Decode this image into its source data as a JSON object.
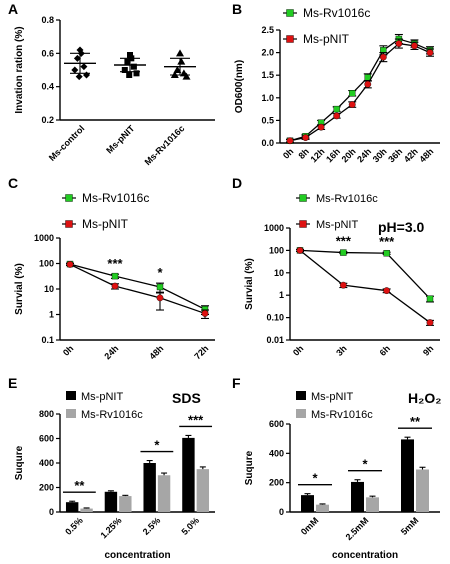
{
  "colors": {
    "green": "#22cc22",
    "red": "#dd1111",
    "black": "#000000",
    "gray": "#a6a6a6"
  },
  "chart_data": [
    {
      "panel": "A",
      "type": "scatter",
      "categories": [
        "Ms-control",
        "Ms-pNIT",
        "Ms-Rv1016c"
      ],
      "ylabel": "Invation ration (%)",
      "ylim": [
        0.2,
        0.8
      ],
      "yticks": [
        "0.2",
        "0.4",
        "0.6",
        "0.8"
      ],
      "points": [
        [
          0.62,
          0.6,
          0.57,
          0.52,
          0.5,
          0.47,
          0.46
        ],
        [
          0.59,
          0.57,
          0.55,
          0.52,
          0.5,
          0.48,
          0.47
        ],
        [
          0.6,
          0.55,
          0.5,
          0.48,
          0.47,
          0.46
        ]
      ],
      "means": [
        0.54,
        0.53,
        0.52
      ],
      "sd": [
        0.06,
        0.04,
        0.05
      ]
    },
    {
      "panel": "B",
      "type": "line",
      "x": [
        "0h",
        "8h",
        "12h",
        "16h",
        "20h",
        "24h",
        "30h",
        "36h",
        "42h",
        "48h"
      ],
      "ylabel": "OD600(nm)",
      "ylim": [
        0,
        2.5
      ],
      "yticks": [
        "0.0",
        "0.5",
        "1.0",
        "1.5",
        "2.0",
        "2.5"
      ],
      "series": [
        {
          "name": "Ms-Rv1016c",
          "color": "green",
          "values": [
            0.05,
            0.15,
            0.45,
            0.75,
            1.1,
            1.45,
            2.05,
            2.3,
            2.2,
            2.05
          ],
          "err": [
            0.03,
            0.04,
            0.05,
            0.05,
            0.06,
            0.08,
            0.1,
            0.1,
            0.08,
            0.08
          ]
        },
        {
          "name": "Ms-pNIT",
          "color": "red",
          "values": [
            0.05,
            0.12,
            0.35,
            0.6,
            0.85,
            1.3,
            1.9,
            2.2,
            2.15,
            2.0
          ],
          "err": [
            0.03,
            0.04,
            0.05,
            0.05,
            0.06,
            0.08,
            0.1,
            0.1,
            0.08,
            0.08
          ]
        }
      ]
    },
    {
      "panel": "C",
      "type": "line",
      "x": [
        "0h",
        "24h",
        "48h",
        "72h"
      ],
      "ylabel": "Survial (%)",
      "ylim": [
        0.1,
        1000
      ],
      "yscale": "log",
      "yticks": [
        "0.1",
        "1",
        "10",
        "100",
        "1000"
      ],
      "series": [
        {
          "name": "Ms-Rv1016c",
          "color": "green",
          "values": [
            95,
            32,
            12,
            1.6
          ],
          "err": [
            8,
            6,
            5,
            0.6
          ]
        },
        {
          "name": "Ms-pNIT",
          "color": "red",
          "values": [
            92,
            13,
            4.5,
            1.1
          ],
          "err": [
            8,
            3,
            3,
            0.4
          ]
        }
      ],
      "annotations": [
        {
          "x": "24h",
          "text": "***"
        },
        {
          "x": "48h",
          "text": "*"
        }
      ]
    },
    {
      "panel": "D",
      "type": "line",
      "x": [
        "0h",
        "3h",
        "6h",
        "9h"
      ],
      "ylabel": "Survial (%)",
      "ylim": [
        0.01,
        1000
      ],
      "yscale": "log",
      "yticks": [
        "0.01",
        "0.10",
        "1",
        "10",
        "100",
        "1000"
      ],
      "note": "pH=3.0",
      "series": [
        {
          "name": "Ms-Rv1016c",
          "color": "green",
          "values": [
            100,
            80,
            75,
            0.7
          ],
          "err": [
            10,
            8,
            8,
            0.2
          ]
        },
        {
          "name": "Ms-pNIT",
          "color": "red",
          "values": [
            100,
            2.8,
            1.6,
            0.06
          ],
          "err": [
            10,
            0.6,
            0.3,
            0.015
          ]
        }
      ],
      "annotations": [
        {
          "x": "3h",
          "text": "***"
        },
        {
          "x": "6h",
          "text": "***"
        }
      ]
    },
    {
      "panel": "E",
      "type": "bar",
      "categories": [
        "0.5%",
        "1.25%",
        "2.5%",
        "5.0%"
      ],
      "xlabel": "concentration",
      "ylabel": "Suqure",
      "ylim": [
        0,
        800
      ],
      "yticks": [
        "0",
        "200",
        "400",
        "600",
        "800"
      ],
      "note": "SDS",
      "series": [
        {
          "name": "Ms-pNIT",
          "color": "black",
          "values": [
            80,
            165,
            400,
            605
          ],
          "err": [
            8,
            8,
            20,
            20
          ]
        },
        {
          "name": "Ms-Rv1016c",
          "color": "gray",
          "values": [
            28,
            130,
            300,
            350
          ],
          "err": [
            5,
            6,
            18,
            18
          ]
        }
      ],
      "annotations": [
        {
          "x": "0.5%",
          "text": "**"
        },
        {
          "x": "2.5%",
          "text": "*"
        },
        {
          "x": "5.0%",
          "text": "***"
        }
      ]
    },
    {
      "panel": "F",
      "type": "bar",
      "categories": [
        "0mM",
        "2.5mM",
        "5mM"
      ],
      "xlabel": "concentration",
      "ylabel": "Suqure",
      "ylim": [
        0,
        600
      ],
      "yticks": [
        "0",
        "200",
        "400",
        "600"
      ],
      "note": "H₂O₂",
      "series": [
        {
          "name": "Ms-pNIT",
          "color": "black",
          "values": [
            115,
            205,
            495
          ],
          "err": [
            10,
            15,
            15
          ]
        },
        {
          "name": "Ms-Rv1016c",
          "color": "gray",
          "values": [
            50,
            100,
            290
          ],
          "err": [
            5,
            8,
            15
          ]
        }
      ],
      "annotations": [
        {
          "x": "0mM",
          "text": "*"
        },
        {
          "x": "2.5mM",
          "text": "*"
        },
        {
          "x": "5mM",
          "text": "**"
        }
      ]
    }
  ]
}
